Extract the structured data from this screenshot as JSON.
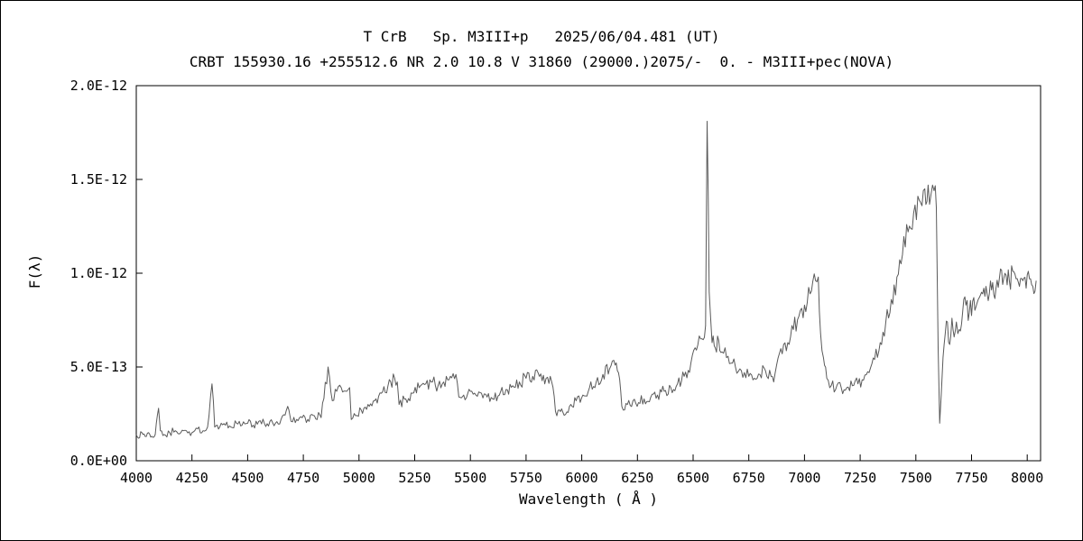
{
  "chart_data": {
    "type": "line",
    "title": "T CrB   Sp. M3III+p   2025/06/04.481 (UT)",
    "subtitle": "CRBT 155930.16 +255512.6 NR 2.0 10.8 V 31860 (29000.)2075/-  0. - M3III+pec(NOVA)",
    "xlabel": "Wavelength ( Å )",
    "ylabel": "F(λ)",
    "xlim": [
      4000,
      8060
    ],
    "ylim": [
      0,
      20
    ],
    "flux_unit": "1e-13",
    "xticks": [
      4000,
      4250,
      4500,
      4750,
      5000,
      5250,
      5500,
      5750,
      6000,
      6250,
      6500,
      6750,
      7000,
      7250,
      7500,
      7750,
      8000
    ],
    "yticks": [
      {
        "value": 0,
        "label": "0.0E+00"
      },
      {
        "value": 5,
        "label": "5.0E-13"
      },
      {
        "value": 10,
        "label": "1.0E-12"
      },
      {
        "value": 15,
        "label": "1.5E-12"
      },
      {
        "value": 20,
        "label": "2.0E-12"
      }
    ],
    "line_color": "#5a5a5a",
    "frame_color": "#000000",
    "noise": {
      "seed": 20250604,
      "step": 6,
      "frac": 0.12,
      "abs": 0.2
    },
    "points": [
      [
        4000,
        1.4
      ],
      [
        4010,
        1.2
      ],
      [
        4025,
        1.5
      ],
      [
        4040,
        1.3
      ],
      [
        4055,
        1.5
      ],
      [
        4070,
        1.3
      ],
      [
        4085,
        1.4
      ],
      [
        4100,
        2.8
      ],
      [
        4108,
        1.6
      ],
      [
        4125,
        1.4
      ],
      [
        4150,
        1.5
      ],
      [
        4175,
        1.6
      ],
      [
        4200,
        1.5
      ],
      [
        4225,
        1.6
      ],
      [
        4250,
        1.5
      ],
      [
        4275,
        1.7
      ],
      [
        4300,
        1.6
      ],
      [
        4320,
        1.8
      ],
      [
        4340,
        4.1
      ],
      [
        4352,
        1.8
      ],
      [
        4375,
        1.8
      ],
      [
        4400,
        1.9
      ],
      [
        4425,
        1.8
      ],
      [
        4450,
        2.0
      ],
      [
        4475,
        1.9
      ],
      [
        4500,
        2.0
      ],
      [
        4525,
        1.9
      ],
      [
        4550,
        2.1
      ],
      [
        4575,
        2.0
      ],
      [
        4600,
        2.1
      ],
      [
        4625,
        2.0
      ],
      [
        4650,
        2.2
      ],
      [
        4680,
        2.9
      ],
      [
        4695,
        2.1
      ],
      [
        4720,
        2.2
      ],
      [
        4745,
        2.3
      ],
      [
        4770,
        2.2
      ],
      [
        4800,
        2.4
      ],
      [
        4830,
        2.3
      ],
      [
        4861,
        5.0
      ],
      [
        4880,
        3.2
      ],
      [
        4900,
        3.7
      ],
      [
        4920,
        3.9
      ],
      [
        4945,
        3.7
      ],
      [
        4958,
        3.9
      ],
      [
        4965,
        2.2
      ],
      [
        4985,
        2.4
      ],
      [
        5010,
        2.7
      ],
      [
        5040,
        3.0
      ],
      [
        5070,
        3.2
      ],
      [
        5100,
        3.6
      ],
      [
        5130,
        4.0
      ],
      [
        5160,
        4.4
      ],
      [
        5172,
        4.2
      ],
      [
        5180,
        3.0
      ],
      [
        5210,
        3.3
      ],
      [
        5240,
        3.6
      ],
      [
        5270,
        3.9
      ],
      [
        5300,
        4.1
      ],
      [
        5330,
        4.2
      ],
      [
        5355,
        4.0
      ],
      [
        5380,
        4.2
      ],
      [
        5410,
        4.5
      ],
      [
        5435,
        4.6
      ],
      [
        5448,
        3.4
      ],
      [
        5470,
        3.5
      ],
      [
        5500,
        3.7
      ],
      [
        5525,
        3.5
      ],
      [
        5550,
        3.6
      ],
      [
        5575,
        3.4
      ],
      [
        5600,
        3.3
      ],
      [
        5630,
        3.5
      ],
      [
        5660,
        3.8
      ],
      [
        5690,
        4.0
      ],
      [
        5720,
        4.2
      ],
      [
        5750,
        4.4
      ],
      [
        5780,
        4.5
      ],
      [
        5810,
        4.5
      ],
      [
        5840,
        4.4
      ],
      [
        5865,
        4.2
      ],
      [
        5888,
        2.4
      ],
      [
        5915,
        2.6
      ],
      [
        5945,
        2.9
      ],
      [
        5975,
        3.2
      ],
      [
        6005,
        3.5
      ],
      [
        6035,
        3.9
      ],
      [
        6065,
        4.2
      ],
      [
        6095,
        4.6
      ],
      [
        6125,
        4.9
      ],
      [
        6150,
        5.1
      ],
      [
        6165,
        4.7
      ],
      [
        6180,
        2.9
      ],
      [
        6205,
        3.0
      ],
      [
        6230,
        3.2
      ],
      [
        6255,
        3.1
      ],
      [
        6280,
        3.3
      ],
      [
        6310,
        3.4
      ],
      [
        6340,
        3.5
      ],
      [
        6370,
        3.7
      ],
      [
        6400,
        3.9
      ],
      [
        6430,
        4.1
      ],
      [
        6460,
        4.5
      ],
      [
        6490,
        5.2
      ],
      [
        6515,
        5.9
      ],
      [
        6540,
        6.5
      ],
      [
        6556,
        7.2
      ],
      [
        6563,
        18.1
      ],
      [
        6572,
        9.0
      ],
      [
        6585,
        6.3
      ],
      [
        6600,
        6.0
      ],
      [
        6615,
        6.4
      ],
      [
        6630,
        5.8
      ],
      [
        6650,
        5.5
      ],
      [
        6670,
        5.2
      ],
      [
        6690,
        5.0
      ],
      [
        6710,
        4.9
      ],
      [
        6730,
        4.7
      ],
      [
        6750,
        4.5
      ],
      [
        6775,
        4.4
      ],
      [
        6800,
        4.6
      ],
      [
        6825,
        4.8
      ],
      [
        6850,
        4.5
      ],
      [
        6862,
        4.2
      ],
      [
        6875,
        5.1
      ],
      [
        6900,
        5.7
      ],
      [
        6925,
        6.3
      ],
      [
        6950,
        7.0
      ],
      [
        6975,
        7.7
      ],
      [
        7000,
        8.3
      ],
      [
        7025,
        8.9
      ],
      [
        7050,
        9.6
      ],
      [
        7062,
        9.8
      ],
      [
        7072,
        6.8
      ],
      [
        7085,
        5.5
      ],
      [
        7100,
        4.4
      ],
      [
        7120,
        4.0
      ],
      [
        7140,
        3.8
      ],
      [
        7165,
        3.9
      ],
      [
        7190,
        3.9
      ],
      [
        7215,
        4.0
      ],
      [
        7240,
        4.1
      ],
      [
        7265,
        4.3
      ],
      [
        7290,
        4.7
      ],
      [
        7315,
        5.4
      ],
      [
        7340,
        6.3
      ],
      [
        7365,
        7.4
      ],
      [
        7390,
        8.6
      ],
      [
        7415,
        9.8
      ],
      [
        7440,
        11.0
      ],
      [
        7465,
        12.2
      ],
      [
        7490,
        13.2
      ],
      [
        7515,
        13.9
      ],
      [
        7540,
        14.5
      ],
      [
        7555,
        14.7
      ],
      [
        7568,
        14.2
      ],
      [
        7582,
        14.4
      ],
      [
        7592,
        13.5
      ],
      [
        7600,
        6.0
      ],
      [
        7607,
        2.0
      ],
      [
        7614,
        3.5
      ],
      [
        7622,
        5.5
      ],
      [
        7632,
        6.8
      ],
      [
        7642,
        7.4
      ],
      [
        7652,
        6.2
      ],
      [
        7662,
        7.6
      ],
      [
        7672,
        6.6
      ],
      [
        7682,
        7.4
      ],
      [
        7695,
        7.0
      ],
      [
        7710,
        7.9
      ],
      [
        7725,
        8.3
      ],
      [
        7740,
        7.9
      ],
      [
        7755,
        8.5
      ],
      [
        7770,
        8.2
      ],
      [
        7785,
        8.7
      ],
      [
        7800,
        8.9
      ],
      [
        7815,
        9.3
      ],
      [
        7830,
        8.9
      ],
      [
        7845,
        9.5
      ],
      [
        7860,
        9.2
      ],
      [
        7875,
        9.7
      ],
      [
        7890,
        9.4
      ],
      [
        7905,
        9.9
      ],
      [
        7920,
        9.6
      ],
      [
        7935,
        10.1
      ],
      [
        7950,
        9.7
      ],
      [
        7965,
        9.3
      ],
      [
        7980,
        9.6
      ],
      [
        7995,
        9.2
      ],
      [
        8010,
        9.7
      ],
      [
        8025,
        9.3
      ],
      [
        8040,
        9.6
      ]
    ]
  }
}
